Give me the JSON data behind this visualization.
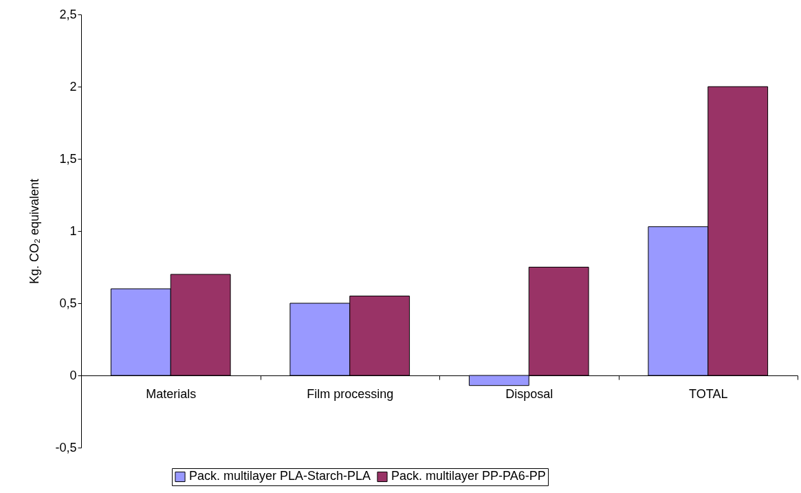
{
  "chart_data": {
    "type": "bar",
    "ylabel": "Kg. CO₂ equivalent",
    "categories": [
      "Materials",
      "Film processing",
      "Disposal",
      "TOTAL"
    ],
    "series": [
      {
        "name": "Pack. multilayer PLA-Starch-PLA",
        "color": "#9999ff",
        "values": [
          0.6,
          0.5,
          -0.07,
          1.03
        ]
      },
      {
        "name": "Pack. multilayer PP-PA6-PP",
        "color": "#993366",
        "values": [
          0.7,
          0.55,
          0.75,
          2.0
        ]
      }
    ],
    "ylim": [
      -0.5,
      2.5
    ],
    "yticks": [
      {
        "value": -0.5,
        "label": "-0,5"
      },
      0,
      {
        "value": 0.5,
        "label": "0,5"
      },
      1,
      {
        "value": 1.5,
        "label": "1,5"
      },
      2,
      {
        "value": 2.5,
        "label": "2,5"
      }
    ],
    "grid": false,
    "legend": "bottom"
  }
}
